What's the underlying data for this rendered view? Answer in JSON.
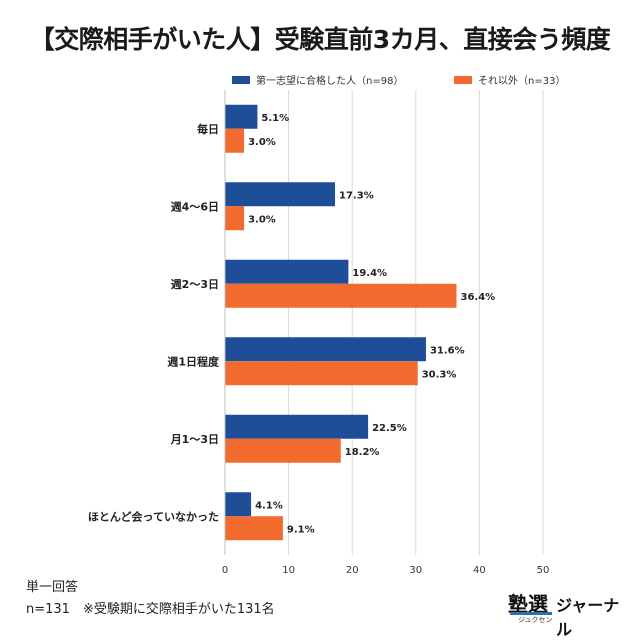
{
  "title": "【交際相手がいた人】受験直前3カ月、直接会う頻度",
  "colors": {
    "series1": "#1f4e99",
    "series2": "#f26a2e",
    "grid": "#d9d9d9"
  },
  "chart_data": {
    "type": "bar",
    "orientation": "horizontal",
    "categories": [
      "毎日",
      "週4〜6日",
      "週2〜3日",
      "週1日程度",
      "月1〜3日",
      "ほとんど会っていなかった"
    ],
    "series": [
      {
        "name": "第一志望に合格した人（n=98）",
        "values": [
          5.1,
          17.3,
          19.4,
          31.6,
          22.5,
          4.1
        ],
        "labels": [
          "5.1%",
          "17.3%",
          "19.4%",
          "31.6%",
          "22.5%",
          "4.1%"
        ]
      },
      {
        "name": "それ以外（n=33）",
        "values": [
          3.0,
          3.0,
          36.4,
          30.3,
          18.2,
          9.1
        ],
        "labels": [
          "3.0%",
          "3.0%",
          "36.4%",
          "30.3%",
          "18.2%",
          "9.1%"
        ]
      }
    ],
    "xlim": [
      0,
      50
    ],
    "xticks": [
      0,
      10,
      20,
      30,
      40,
      50
    ],
    "xtick_labels": [
      "0",
      "10",
      "20",
      "30",
      "40",
      "50"
    ],
    "grid": true,
    "legend_position": "top"
  },
  "notes": {
    "line1": "単一回答",
    "line2": "n=131　※受験期に交際相手がいた131名"
  },
  "logo": {
    "kanji": "塾選",
    "kana": "ジャーナル",
    "ruby": "ジュクセン"
  }
}
